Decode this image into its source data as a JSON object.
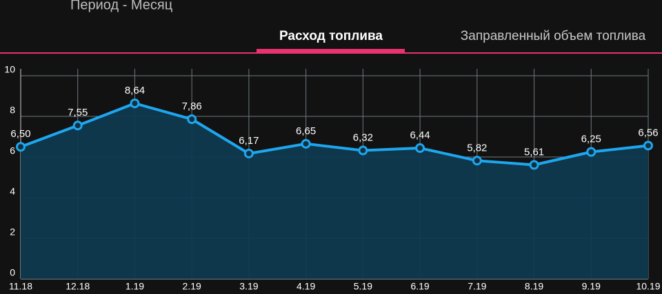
{
  "header": {
    "title": "Период - Месяц"
  },
  "tabs": [
    "Расход топлива",
    "Заправленный объем топлива"
  ],
  "chart_data": {
    "type": "line",
    "categories": [
      "11.18",
      "12.18",
      "1.19",
      "2.19",
      "3.19",
      "4.19",
      "5.19",
      "6.19",
      "7.19",
      "8.19",
      "9.19",
      "10.19"
    ],
    "values": [
      6.5,
      7.55,
      8.64,
      7.86,
      6.17,
      6.65,
      6.32,
      6.44,
      5.82,
      5.61,
      6.25,
      6.56
    ],
    "value_labels": [
      "6,50",
      "7,55",
      "8,64",
      "7,86",
      "6,17",
      "6,65",
      "6,32",
      "6,44",
      "5,82",
      "5,61",
      "6,25",
      "6,56"
    ],
    "color": "#1ea6ee",
    "ylim": [
      0,
      10
    ],
    "yticks": [
      0,
      2,
      4,
      6,
      8,
      10
    ],
    "grid": true
  }
}
